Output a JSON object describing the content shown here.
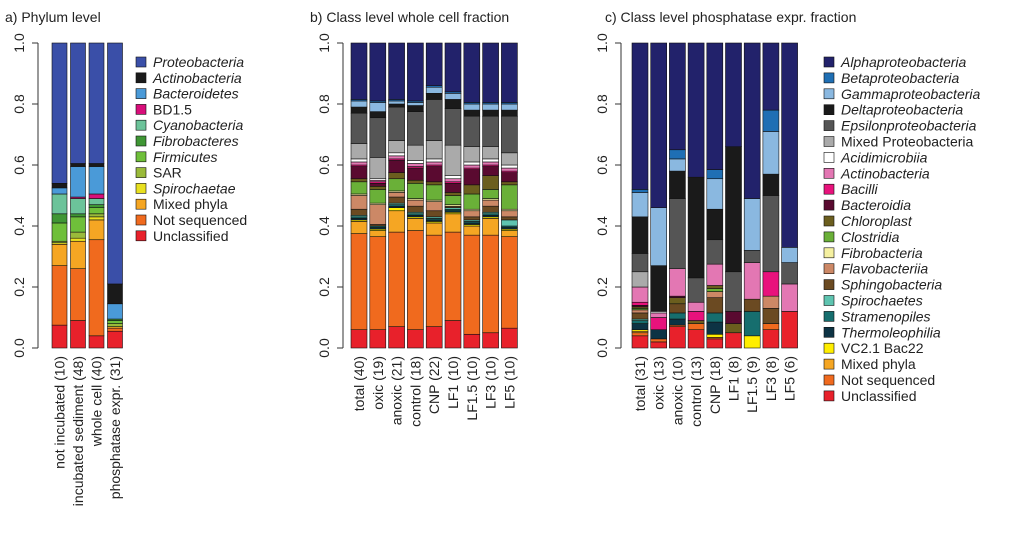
{
  "chart_data": [
    {
      "type": "bar",
      "stacked": true,
      "title": "a) Phylum level",
      "legend": "right",
      "categories": [
        "not incubated (10)",
        "incubated sediment (48)",
        "whole cell (40)",
        "phosphatase expr. (31)"
      ],
      "ylim": [
        0,
        1
      ],
      "yticks": [
        {
          "value": 0,
          "label": "0.0"
        },
        0.2,
        0.4,
        0.6,
        0.8,
        {
          "value": 1,
          "label": "1.0"
        }
      ],
      "series": [
        {
          "name": "Proteobacteria",
          "italic": true,
          "color": "#3a4fa8",
          "values": [
            0.46,
            0.395,
            0.395,
            0.79
          ]
        },
        {
          "name": "Actinobacteria",
          "italic": true,
          "color": "#1a1a1a",
          "values": [
            0.015,
            0.01,
            0.01,
            0.065
          ]
        },
        {
          "name": "Bacteroidetes",
          "italic": true,
          "color": "#4a9ad8",
          "values": [
            0.02,
            0.1,
            0.09,
            0.05
          ]
        },
        {
          "name": "BD1.5",
          "color": "#d80e7a",
          "values": [
            0,
            0.005,
            0.015,
            0
          ]
        },
        {
          "name": "Cyanobacteria",
          "italic": true,
          "color": "#6cc39a",
          "values": [
            0.065,
            0.05,
            0.02,
            0
          ]
        },
        {
          "name": "Fibrobacteres",
          "italic": true,
          "color": "#3f9634",
          "values": [
            0.03,
            0.01,
            0.01,
            0.005
          ]
        },
        {
          "name": "Firmicutes",
          "italic": true,
          "color": "#6fbf3a",
          "values": [
            0.06,
            0.05,
            0.02,
            0.01
          ]
        },
        {
          "name": "SAR",
          "color": "#9aba3a",
          "values": [
            0.005,
            0.02,
            0.01,
            0.01
          ]
        },
        {
          "name": "Spirochaetae",
          "italic": true,
          "color": "#e8e020",
          "values": [
            0.005,
            0.01,
            0.01,
            0
          ]
        },
        {
          "name": "Mixed phyla",
          "color": "#f5a623",
          "values": [
            0.07,
            0.09,
            0.065,
            0.005
          ]
        },
        {
          "name": "Not sequenced",
          "color": "#f06a1e",
          "values": [
            0.195,
            0.17,
            0.315,
            0.01
          ]
        },
        {
          "name": "Unclassified",
          "color": "#e8212b",
          "values": [
            0.075,
            0.09,
            0.04,
            0.055
          ]
        }
      ]
    },
    {
      "type": "bar",
      "stacked": true,
      "title": "b) Class level whole cell fraction",
      "categories": [
        "total (40)",
        "oxic (19)",
        "anoxic (21)",
        "control (18)",
        "CNP (22)",
        "LF1 (10)",
        "LF1.5 (10)",
        "LF3 (10)",
        "LF5 (10)"
      ],
      "ylim": [
        0,
        1
      ],
      "yticks": [
        {
          "value": 0,
          "label": "0.0"
        },
        0.2,
        0.4,
        0.6,
        0.8,
        {
          "value": 1,
          "label": "1.0"
        }
      ],
      "series": [
        {
          "color": "#22226b",
          "values": [
            0.185,
            0.19,
            0.185,
            0.19,
            0.14,
            0.16,
            0.195,
            0.195,
            0.195
          ]
        },
        {
          "color": "#1f6fb4",
          "values": [
            0.005,
            0.005,
            0.005,
            0.005,
            0.005,
            0.005,
            0.005,
            0.005,
            0.005
          ]
        },
        {
          "color": "#8ab8e0",
          "values": [
            0.02,
            0.03,
            0.01,
            0.01,
            0.02,
            0.02,
            0.02,
            0.02,
            0.02
          ]
        },
        {
          "color": "#1a1a1a",
          "values": [
            0.02,
            0.02,
            0.01,
            0.02,
            0.02,
            0.03,
            0.02,
            0.02,
            0.02
          ]
        },
        {
          "color": "#555555",
          "values": [
            0.1,
            0.13,
            0.11,
            0.11,
            0.135,
            0.12,
            0.1,
            0.1,
            0.12
          ]
        },
        {
          "color": "#aaaaaa",
          "values": [
            0.05,
            0.07,
            0.04,
            0.05,
            0.06,
            0.1,
            0.05,
            0.04,
            0.04
          ]
        },
        {
          "color": "#ffffff",
          "values": [
            0.01,
            0.005,
            0.01,
            0.01,
            0.01,
            0.01,
            0.01,
            0.01,
            0.01
          ]
        },
        {
          "color": "#e377b3",
          "values": [
            0.01,
            0.005,
            0.01,
            0.01,
            0.01,
            0.01,
            0.01,
            0.01,
            0.01
          ]
        },
        {
          "color": "#e8127c",
          "values": [
            0.005,
            0.005,
            0.005,
            0.005,
            0.005,
            0.005,
            0.005,
            0.005,
            0.005
          ]
        },
        {
          "color": "#5a0a30",
          "values": [
            0.04,
            0.01,
            0.04,
            0.04,
            0.05,
            0.03,
            0.05,
            0.03,
            0.03
          ]
        },
        {
          "color": "#6b5e1e",
          "values": [
            0.01,
            0.01,
            0.02,
            0.01,
            0.01,
            0.01,
            0.03,
            0.045,
            0.01
          ]
        },
        {
          "color": "#6ab038",
          "values": [
            0.04,
            0.045,
            0.04,
            0.05,
            0.05,
            0.03,
            0.05,
            0.03,
            0.08
          ]
        },
        {
          "color": "#f5f0a0",
          "values": [
            0.005,
            0.005,
            0.005,
            0.005,
            0.005,
            0.005,
            0.005,
            0.005,
            0.005
          ]
        },
        {
          "color": "#cc8866",
          "values": [
            0.045,
            0.065,
            0.015,
            0.02,
            0.03,
            0,
            0.02,
            0.02,
            0.02
          ]
        },
        {
          "color": "#6b4a22",
          "values": [
            0.02,
            0.005,
            0.02,
            0.02,
            0.02,
            0.005,
            0.01,
            0.02,
            0.01
          ]
        },
        {
          "color": "#5ec4b0",
          "values": [
            0.005,
            0,
            0.005,
            0.005,
            0.005,
            0.005,
            0.005,
            0.005,
            0.02
          ]
        },
        {
          "color": "#166e6e",
          "values": [
            0.005,
            0.005,
            0.005,
            0.005,
            0.005,
            0.005,
            0.005,
            0.005,
            0.005
          ]
        },
        {
          "color": "#0d3344",
          "values": [
            0.005,
            0.005,
            0.005,
            0.005,
            0.005,
            0.005,
            0.005,
            0.005,
            0.005
          ]
        },
        {
          "color": "#ffee00",
          "values": [
            0.005,
            0.005,
            0.01,
            0.005,
            0.005,
            0.005,
            0.005,
            0.005,
            0.005
          ]
        },
        {
          "color": "#f5a623",
          "values": [
            0.04,
            0.02,
            0.07,
            0.04,
            0.04,
            0.06,
            0.03,
            0.055,
            0.02
          ]
        },
        {
          "color": "#f06a1e",
          "values": [
            0.315,
            0.305,
            0.31,
            0.325,
            0.3,
            0.29,
            0.325,
            0.32,
            0.3
          ]
        },
        {
          "color": "#e8212b",
          "values": [
            0.06,
            0.06,
            0.07,
            0.06,
            0.07,
            0.09,
            0.045,
            0.05,
            0.065
          ]
        }
      ]
    },
    {
      "type": "bar",
      "stacked": true,
      "title": "c) Class level phosphatase expr. fraction",
      "legend": "right",
      "categories": [
        "total (31)",
        "oxic (13)",
        "anoxic (10)",
        "control (13)",
        "CNP (18)",
        "LF1 (8)",
        "LF1.5 (9)",
        "LF3 (8)",
        "LF5 (6)"
      ],
      "ylim": [
        0,
        1
      ],
      "yticks": [
        {
          "value": 0,
          "label": "0.0"
        },
        0.2,
        0.4,
        0.6,
        0.8,
        {
          "value": 1,
          "label": "1.0"
        }
      ],
      "series": [
        {
          "name": "Alphaproteobacteria",
          "italic": true,
          "color": "#22226b",
          "values": [
            0.48,
            0.54,
            0.35,
            0.44,
            0.415,
            0.34,
            0.51,
            0.22,
            0.67
          ]
        },
        {
          "name": "Betaproteobacteria",
          "italic": true,
          "color": "#1f6fb4",
          "values": [
            0.01,
            0,
            0.03,
            0,
            0.03,
            0,
            0,
            0.07,
            0
          ]
        },
        {
          "name": "Gammaproteobacteria",
          "italic": true,
          "color": "#8ab8e0",
          "values": [
            0.08,
            0.19,
            0.04,
            0,
            0.1,
            0,
            0.17,
            0.14,
            0.05
          ]
        },
        {
          "name": "Deltaproteobacteria",
          "italic": true,
          "color": "#1a1a1a",
          "values": [
            0.12,
            0.15,
            0.09,
            0.33,
            0.1,
            0.41,
            0,
            0.07,
            0
          ]
        },
        {
          "name": "Epsilonproteobacteria",
          "italic": true,
          "color": "#555555",
          "values": [
            0.06,
            0,
            0.23,
            0.08,
            0.08,
            0.13,
            0.04,
            0.25,
            0.07
          ]
        },
        {
          "name": "Mixed Proteobacteria",
          "color": "#aaaaaa",
          "values": [
            0.05,
            0,
            0,
            0,
            0,
            0,
            0,
            0,
            0
          ]
        },
        {
          "name": "Acidimicrobiia",
          "italic": true,
          "color": "#ffffff",
          "values": [
            0,
            0.005,
            0,
            0,
            0,
            0,
            0,
            0,
            0
          ]
        },
        {
          "name": "Actinobacteria",
          "italic": true,
          "color": "#e377b3",
          "values": [
            0.05,
            0.015,
            0.09,
            0.03,
            0.07,
            0,
            0.12,
            0,
            0.09
          ]
        },
        {
          "name": "Bacilli",
          "italic": true,
          "color": "#e8127c",
          "values": [
            0.01,
            0.04,
            0,
            0.03,
            0,
            0,
            0,
            0.08,
            0
          ]
        },
        {
          "name": "Bacteroidia",
          "italic": true,
          "color": "#5a0a30",
          "values": [
            0.005,
            0,
            0.005,
            0,
            0,
            0.04,
            0,
            0,
            0
          ]
        },
        {
          "name": "Chloroplast",
          "italic": true,
          "color": "#6b5e1e",
          "values": [
            0.005,
            0,
            0.02,
            0.01,
            0.01,
            0.03,
            0,
            0,
            0
          ]
        },
        {
          "name": "Clostridia",
          "italic": true,
          "color": "#6ab038",
          "values": [
            0.005,
            0,
            0,
            0,
            0.01,
            0,
            0,
            0,
            0
          ]
        },
        {
          "name": "Fibrobacteria",
          "italic": true,
          "color": "#f5f0a0",
          "values": [
            0,
            0,
            0,
            0,
            0,
            0,
            0,
            0,
            0
          ]
        },
        {
          "name": "Flavobacteriia",
          "italic": true,
          "color": "#cc8866",
          "values": [
            0.01,
            0,
            0,
            0,
            0.02,
            0,
            0,
            0.04,
            0
          ]
        },
        {
          "name": "Sphingobacteria",
          "italic": true,
          "color": "#6b4a22",
          "values": [
            0.02,
            0,
            0.03,
            0,
            0.05,
            0,
            0.04,
            0.05,
            0
          ]
        },
        {
          "name": "Spirochaetes",
          "italic": true,
          "color": "#5ec4b0",
          "values": [
            0.005,
            0,
            0,
            0,
            0,
            0,
            0,
            0,
            0
          ]
        },
        {
          "name": "Stramenopiles",
          "italic": true,
          "color": "#166e6e",
          "values": [
            0.01,
            0,
            0.02,
            0,
            0.03,
            0,
            0.08,
            0,
            0
          ]
        },
        {
          "name": "Thermoleophilia",
          "italic": true,
          "color": "#0d3344",
          "values": [
            0.02,
            0.03,
            0.02,
            0,
            0.04,
            0,
            0,
            0,
            0
          ]
        },
        {
          "name": "VC2.1 Bac22",
          "color": "#ffee00",
          "values": [
            0.005,
            0,
            0,
            0,
            0.01,
            0,
            0.04,
            0,
            0
          ]
        },
        {
          "name": "Mixed phyla",
          "color": "#f5a623",
          "values": [
            0.005,
            0,
            0,
            0,
            0,
            0,
            0,
            0,
            0
          ]
        },
        {
          "name": "Not sequenced",
          "color": "#f06a1e",
          "values": [
            0.01,
            0.01,
            0.005,
            0.02,
            0.005,
            0,
            0,
            0.02,
            0
          ]
        },
        {
          "name": "Unclassified",
          "color": "#e8212b",
          "values": [
            0.04,
            0.02,
            0.07,
            0.06,
            0.03,
            0.05,
            0,
            0.06,
            0.12
          ]
        }
      ]
    }
  ]
}
